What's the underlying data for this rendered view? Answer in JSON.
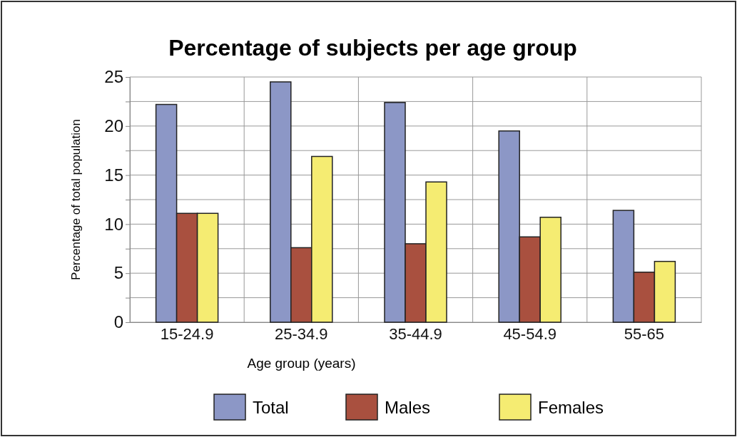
{
  "chart_data": {
    "type": "bar",
    "title": "Percentage of subjects per age group",
    "xlabel": "Age group (years)",
    "ylabel": "Percentage of total population",
    "categories": [
      "15-24.9",
      "25-34.9",
      "35-44.9",
      "45-54.9",
      "55-65"
    ],
    "series": [
      {
        "name": "Total",
        "color": "#8c97c6",
        "values": [
          22.2,
          24.5,
          22.4,
          19.5,
          11.4
        ]
      },
      {
        "name": "Males",
        "color": "#a9503f",
        "values": [
          11.1,
          7.6,
          8.0,
          8.7,
          5.1
        ]
      },
      {
        "name": "Females",
        "color": "#f5ec72",
        "values": [
          11.1,
          16.9,
          14.3,
          10.7,
          6.2
        ]
      }
    ],
    "ylim": [
      0,
      25
    ],
    "yticks": [
      0,
      {
        "value": 2.5,
        "label": null
      },
      5,
      {
        "value": 7.5,
        "label": null
      },
      10,
      {
        "value": 12.5,
        "label": null
      },
      15,
      {
        "value": 17.5,
        "label": null
      },
      20,
      {
        "value": 22.5,
        "label": null
      },
      25
    ],
    "grid": true,
    "legend": "bottom"
  }
}
